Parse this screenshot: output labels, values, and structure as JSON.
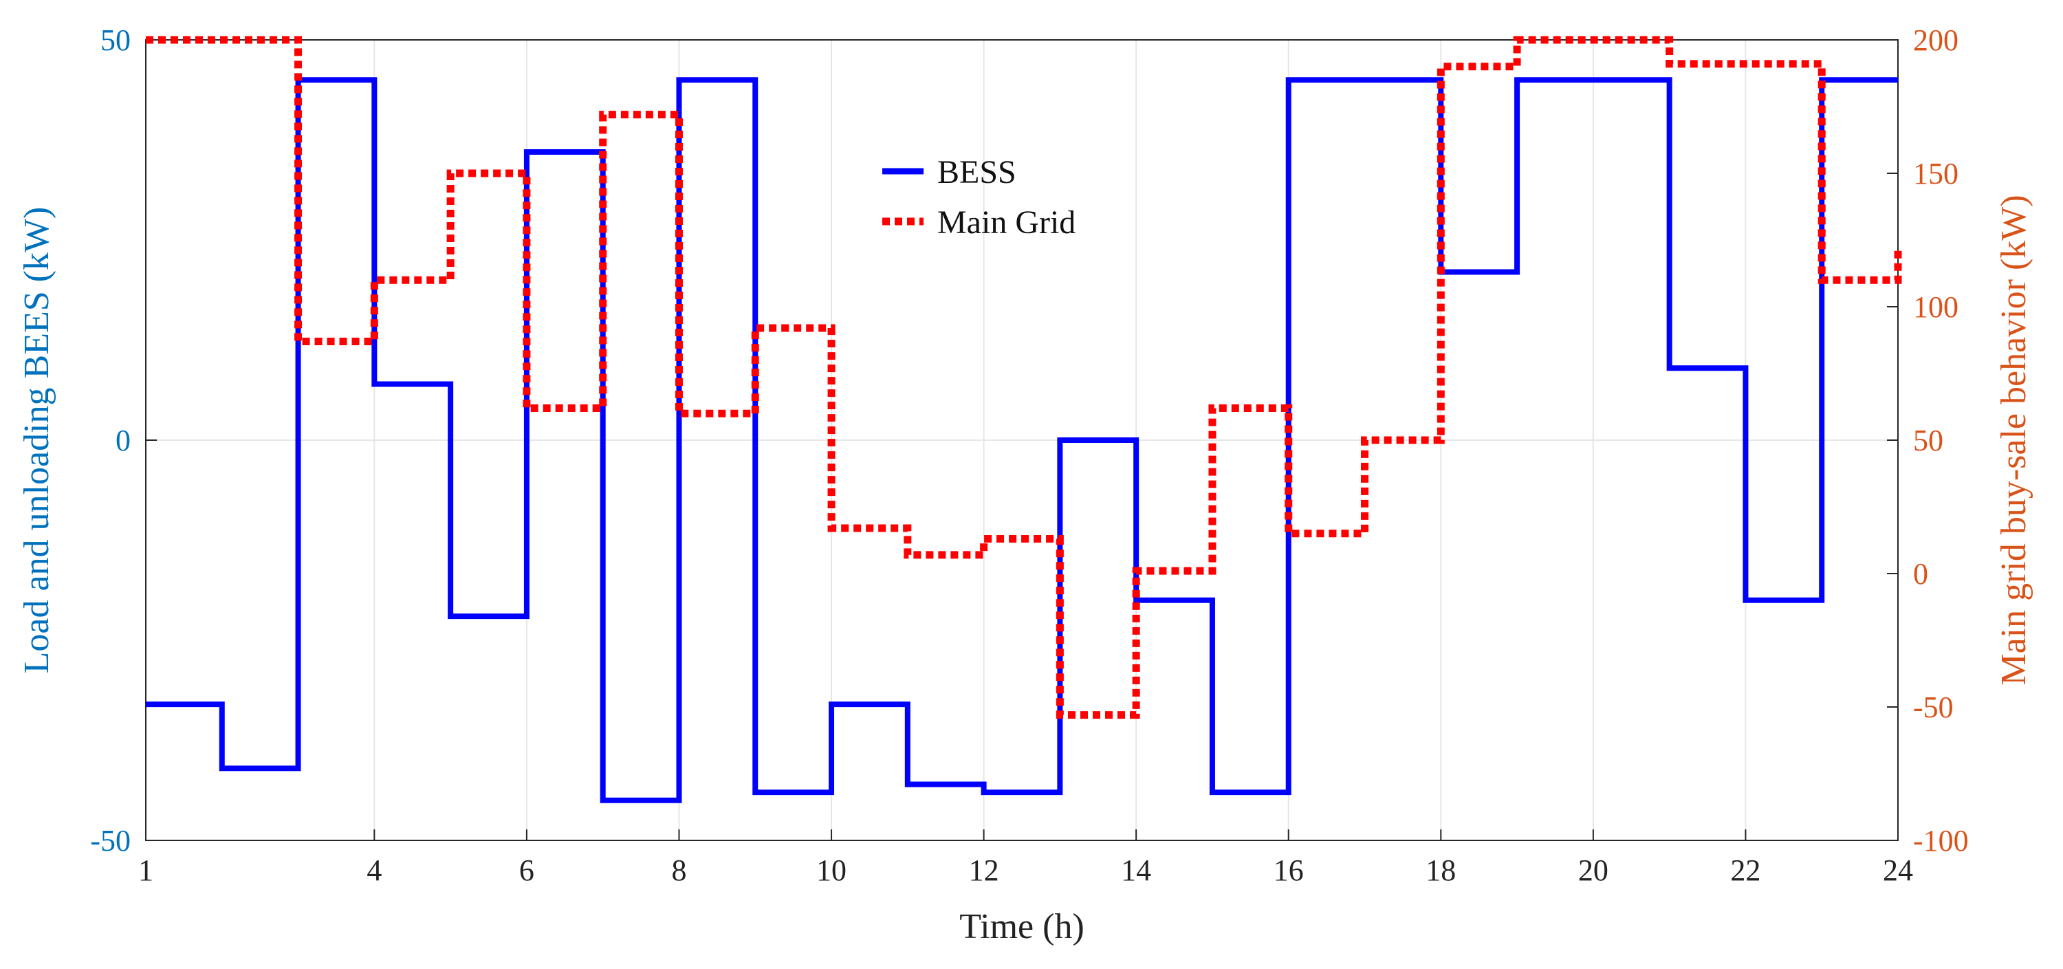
{
  "chart_data": {
    "type": "line",
    "title": "",
    "xlabel": "Time (h)",
    "ylabel_left": "Load and unloading BEES (kW)",
    "ylabel_right": "Main grid buy-sale behavior (kW)",
    "xlim": [
      1,
      24
    ],
    "ylim_left": [
      -50,
      50
    ],
    "ylim_right": [
      -100,
      200
    ],
    "x_ticks": [
      1,
      4,
      6,
      8,
      10,
      12,
      14,
      16,
      18,
      20,
      22,
      24
    ],
    "y_left_ticks": [
      -50,
      0,
      50
    ],
    "y_right_ticks": [
      -100,
      -50,
      0,
      50,
      100,
      150,
      200
    ],
    "grid": true,
    "legend_position": "top-center",
    "series": [
      {
        "name": "BESS",
        "axis": "left",
        "style": "solid",
        "color": "#0000ff",
        "step_edges": [
          1,
          2,
          3,
          4,
          5,
          6,
          7,
          8,
          9,
          10,
          11,
          12,
          13,
          14,
          15,
          16,
          17,
          18,
          19,
          20,
          21,
          22,
          23,
          24
        ],
        "values": [
          -33,
          -41,
          45,
          7,
          -22,
          36,
          -45,
          45,
          -44,
          -33,
          -43,
          -44,
          0,
          -20,
          -44,
          45,
          45,
          21,
          45,
          45,
          9,
          -20,
          45
        ]
      },
      {
        "name": "Main Grid",
        "axis": "right",
        "style": "dotted",
        "color": "#ff0000",
        "step_edges": [
          1,
          2,
          3,
          4,
          5,
          6,
          7,
          8,
          9,
          10,
          11,
          12,
          13,
          14,
          15,
          16,
          17,
          18,
          19,
          20,
          21,
          22,
          23,
          24
        ],
        "values": [
          200,
          200,
          87,
          110,
          150,
          62,
          172,
          60,
          92,
          17,
          7,
          13,
          -53,
          1,
          62,
          15,
          50,
          190,
          200,
          200,
          191,
          191,
          110
        ],
        "end_value": 122
      }
    ]
  }
}
